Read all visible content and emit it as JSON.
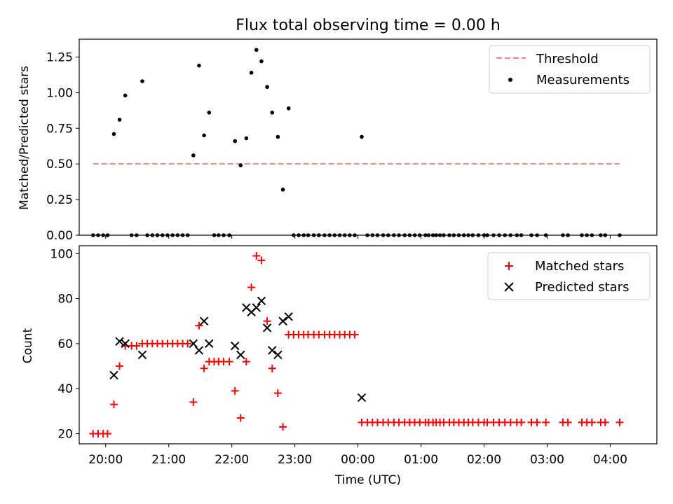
{
  "chart_data": [
    {
      "type": "scatter",
      "title": "Flux total observing time = 0.00 h",
      "xlabel": "",
      "ylabel": "Matched/Predicted stars",
      "xlim_hours": [
        19.58,
        28.74
      ],
      "ylim": [
        0,
        1.375
      ],
      "yticks": [
        "0.00",
        "0.25",
        "0.50",
        "0.75",
        "1.00",
        "1.25"
      ],
      "legend": {
        "position": "top-right",
        "entries": [
          "Threshold",
          "Measurements"
        ]
      },
      "threshold": {
        "name": "Threshold",
        "value": 0.5,
        "x_from": 19.8,
        "x_to": 28.15,
        "color": "#ff7f7f"
      },
      "series": [
        {
          "name": "Measurements",
          "color": "#000000",
          "x": [
            19.8,
            19.88,
            19.96,
            20.03,
            20.13,
            20.22,
            20.31,
            20.41,
            20.49,
            20.58,
            20.66,
            20.74,
            20.82,
            20.9,
            20.98,
            21.06,
            21.14,
            21.22,
            21.3,
            21.39,
            21.48,
            21.56,
            21.64,
            21.72,
            21.79,
            21.87,
            21.96,
            22.05,
            22.14,
            22.23,
            22.31,
            22.39,
            22.47,
            22.56,
            22.64,
            22.73,
            22.81,
            22.9,
            22.98,
            23.06,
            23.14,
            23.21,
            23.3,
            23.38,
            23.47,
            23.55,
            23.63,
            23.71,
            23.79,
            23.87,
            23.95,
            24.06,
            24.15,
            24.23,
            24.31,
            24.4,
            24.48,
            24.57,
            24.65,
            24.74,
            24.82,
            24.9,
            24.98,
            25.07,
            25.12,
            25.19,
            25.24,
            25.3,
            25.36,
            25.45,
            25.52,
            25.6,
            25.68,
            25.75,
            25.82,
            25.91,
            26.0,
            26.05,
            26.15,
            26.24,
            26.33,
            26.42,
            26.52,
            26.59,
            26.75,
            26.84,
            26.98,
            27.25,
            27.33,
            27.55,
            27.63,
            27.71,
            27.85,
            27.92,
            28.15
          ],
          "y": [
            0,
            0,
            0,
            0,
            0.71,
            0.81,
            0.98,
            0,
            0,
            1.08,
            0,
            0,
            0,
            0,
            0,
            0,
            0,
            0,
            0,
            0.56,
            1.19,
            0.7,
            0.86,
            0,
            0,
            0,
            0,
            0.66,
            0.49,
            0.68,
            1.14,
            1.3,
            1.22,
            1.04,
            0.86,
            0.69,
            0.32,
            0.89,
            0,
            0,
            0,
            0,
            0,
            0,
            0,
            0,
            0,
            0,
            0,
            0,
            0,
            0.69,
            0,
            0,
            0,
            0,
            0,
            0,
            0,
            0,
            0,
            0,
            0,
            0,
            0,
            0,
            0,
            0,
            0,
            0,
            0,
            0,
            0,
            0,
            0,
            0,
            0,
            0,
            0,
            0,
            0,
            0,
            0,
            0,
            0,
            0,
            0,
            0,
            0,
            0,
            0,
            0,
            0,
            0,
            0
          ]
        }
      ]
    },
    {
      "type": "scatter",
      "title": "",
      "xlabel": "Time (UTC)",
      "ylabel": "Count",
      "xlim_hours": [
        19.58,
        28.74
      ],
      "ylim": [
        15.5,
        103.5
      ],
      "yticks": [
        "20",
        "40",
        "60",
        "80",
        "100"
      ],
      "xticks": [
        "20:00",
        "21:00",
        "22:00",
        "23:00",
        "00:00",
        "01:00",
        "02:00",
        "03:00",
        "04:00"
      ],
      "legend": {
        "position": "top-right",
        "entries": [
          "Matched stars",
          "Predicted stars"
        ]
      },
      "series": [
        {
          "name": "Matched stars",
          "color": "#ff0000",
          "marker": "+",
          "x": [
            19.8,
            19.88,
            19.96,
            20.03,
            20.13,
            20.22,
            20.31,
            20.41,
            20.49,
            20.58,
            20.66,
            20.74,
            20.82,
            20.9,
            20.98,
            21.06,
            21.14,
            21.22,
            21.3,
            21.39,
            21.48,
            21.56,
            21.64,
            21.72,
            21.79,
            21.87,
            21.96,
            22.05,
            22.14,
            22.23,
            22.31,
            22.39,
            22.47,
            22.56,
            22.64,
            22.73,
            22.81,
            22.9,
            22.98,
            23.06,
            23.14,
            23.21,
            23.3,
            23.38,
            23.47,
            23.55,
            23.63,
            23.71,
            23.79,
            23.87,
            23.95,
            24.06,
            24.15,
            24.23,
            24.31,
            24.4,
            24.48,
            24.57,
            24.65,
            24.74,
            24.82,
            24.9,
            24.98,
            25.07,
            25.12,
            25.19,
            25.24,
            25.3,
            25.36,
            25.45,
            25.52,
            25.6,
            25.68,
            25.75,
            25.82,
            25.91,
            26.0,
            26.05,
            26.15,
            26.24,
            26.33,
            26.42,
            26.52,
            26.59,
            26.75,
            26.84,
            26.98,
            27.25,
            27.33,
            27.55,
            27.63,
            27.71,
            27.85,
            27.92,
            28.15
          ],
          "y": [
            20,
            20,
            20,
            20,
            33,
            50,
            59,
            59,
            59,
            60,
            60,
            60,
            60,
            60,
            60,
            60,
            60,
            60,
            60,
            34,
            68,
            49,
            52,
            52,
            52,
            52,
            52,
            39,
            27,
            52,
            85,
            99,
            97,
            70,
            49,
            38,
            23,
            64,
            64,
            64,
            64,
            64,
            64,
            64,
            64,
            64,
            64,
            64,
            64,
            64,
            64,
            25,
            25,
            25,
            25,
            25,
            25,
            25,
            25,
            25,
            25,
            25,
            25,
            25,
            25,
            25,
            25,
            25,
            25,
            25,
            25,
            25,
            25,
            25,
            25,
            25,
            25,
            25,
            25,
            25,
            25,
            25,
            25,
            25,
            25,
            25,
            25,
            25,
            25,
            25,
            25,
            25,
            25,
            25,
            25
          ]
        },
        {
          "name": "Predicted stars",
          "color": "#000000",
          "marker": "x",
          "x": [
            20.13,
            20.22,
            20.31,
            20.58,
            21.39,
            21.48,
            21.56,
            21.64,
            22.05,
            22.14,
            22.23,
            22.31,
            22.39,
            22.47,
            22.56,
            22.64,
            22.73,
            22.81,
            22.9,
            24.06
          ],
          "y": [
            46,
            61,
            60,
            55,
            60,
            57,
            70,
            60,
            59,
            55,
            76,
            74,
            76,
            79,
            67,
            57,
            55,
            70,
            72,
            36
          ]
        }
      ]
    }
  ]
}
